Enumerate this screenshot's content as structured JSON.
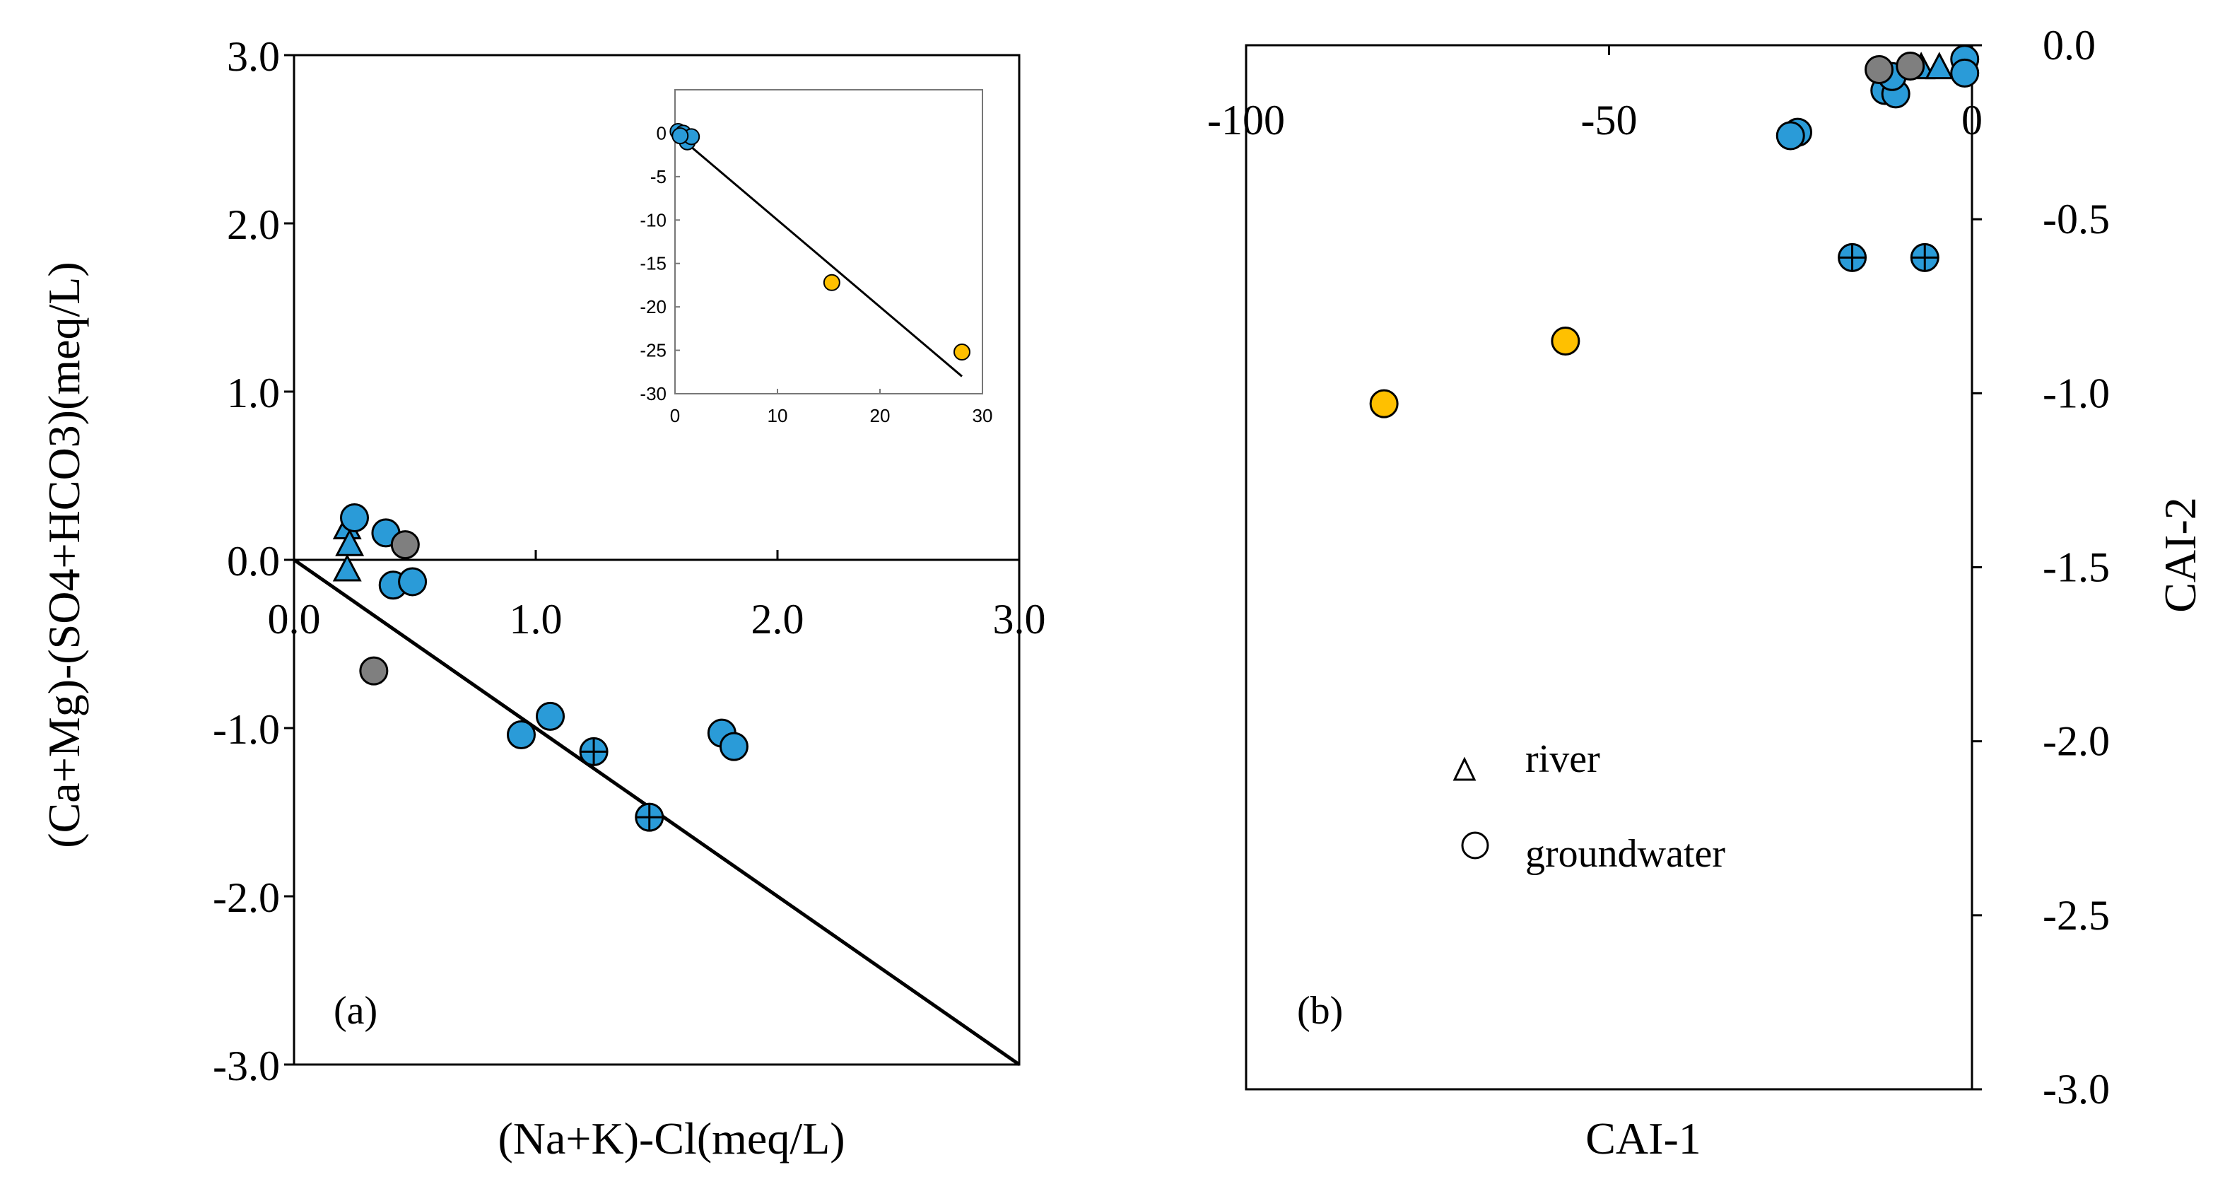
{
  "colors": {
    "blue": "#2a9bd8",
    "gray": "#7f7f7f",
    "orange": "#ffc000",
    "line": "#000000"
  },
  "chart_data": [
    {
      "id": "a",
      "type": "scatter",
      "panel_label": "(a)",
      "xlabel": "(Na+K)-Cl(meq/L)",
      "ylabel": "(Ca+Mg)-(SO4+HCO3)(meq/L)",
      "xlim": [
        0,
        3
      ],
      "ylim": [
        -3,
        3
      ],
      "xticks": [
        "0.0",
        "1.0",
        "2.0",
        "3.0"
      ],
      "yticks": [
        "3.0",
        "2.0",
        "1.0",
        "0.0",
        "-1.0",
        "-2.0",
        "-3.0"
      ],
      "reference_line": {
        "x": [
          0,
          3
        ],
        "y": [
          0,
          -3
        ]
      },
      "series": [
        {
          "name": "river",
          "marker": "triangle",
          "color": "blue",
          "points": [
            [
              0.22,
              0.2
            ],
            [
              0.23,
              0.1
            ],
            [
              0.22,
              -0.05
            ]
          ]
        },
        {
          "name": "groundwater",
          "marker": "circle",
          "color": "blue",
          "points": [
            [
              0.25,
              0.25
            ],
            [
              0.38,
              0.16
            ],
            [
              0.41,
              -0.15
            ],
            [
              0.49,
              -0.13
            ],
            [
              0.94,
              -1.04
            ],
            [
              1.06,
              -0.93
            ],
            [
              1.77,
              -1.03
            ],
            [
              1.82,
              -1.11
            ]
          ]
        },
        {
          "name": "groundwater-cross",
          "marker": "circle-cross",
          "color": "blue",
          "points": [
            [
              1.24,
              -1.14
            ],
            [
              1.47,
              -1.53
            ]
          ]
        },
        {
          "name": "groundwater-gray",
          "marker": "circle",
          "color": "gray",
          "points": [
            [
              0.46,
              0.09
            ],
            [
              0.33,
              -0.66
            ]
          ]
        }
      ]
    },
    {
      "id": "a-inset",
      "type": "scatter",
      "xlim": [
        0,
        30
      ],
      "ylim": [
        -30,
        5
      ],
      "xticks": [
        "0",
        "10",
        "20",
        "30"
      ],
      "yticks": [
        "0",
        "-5",
        "-10",
        "-15",
        "-20",
        "-25",
        "-30"
      ],
      "reference_line": {
        "x": [
          0,
          28
        ],
        "y": [
          0,
          -28
        ]
      },
      "series": [
        {
          "name": "groundwater",
          "marker": "circle",
          "color": "blue",
          "points": [
            [
              0.3,
              0.2
            ],
            [
              0.8,
              0.0
            ],
            [
              1.2,
              -1.0
            ],
            [
              1.6,
              -0.4
            ],
            [
              0.5,
              -0.3
            ]
          ]
        },
        {
          "name": "groundwater-orange",
          "marker": "circle",
          "color": "orange",
          "points": [
            [
              15.3,
              -17.2
            ],
            [
              28.0,
              -25.2
            ]
          ]
        }
      ]
    },
    {
      "id": "b",
      "type": "scatter",
      "panel_label": "(b)",
      "xlabel": "CAI-1",
      "ylabel": "CAI-2",
      "xlim": [
        -100,
        0
      ],
      "ylim": [
        -3,
        0
      ],
      "xticks": [
        "-100",
        "-50",
        "0"
      ],
      "yticks": [
        "0.0",
        "-0.5",
        "-1.0",
        "-1.5",
        "-2.0",
        "-2.5",
        "-3.0"
      ],
      "legend": {
        "position": "center-left",
        "items": [
          "river",
          "groundwater"
        ]
      },
      "series": [
        {
          "name": "river",
          "marker": "triangle",
          "color": "blue",
          "points": [
            [
              -7,
              -0.06
            ],
            [
              -4.5,
              -0.06
            ]
          ]
        },
        {
          "name": "groundwater",
          "marker": "circle",
          "color": "blue",
          "points": [
            [
              -1,
              -0.04
            ],
            [
              -1,
              -0.08
            ],
            [
              -12,
              -0.13
            ],
            [
              -10.5,
              -0.14
            ],
            [
              -11,
              -0.09
            ],
            [
              -24,
              -0.25
            ],
            [
              -25,
              -0.26
            ]
          ]
        },
        {
          "name": "groundwater-cross",
          "marker": "circle-cross",
          "color": "blue",
          "points": [
            [
              -16.5,
              -0.61
            ],
            [
              -6.5,
              -0.61
            ]
          ]
        },
        {
          "name": "groundwater-gray",
          "marker": "circle",
          "color": "gray",
          "points": [
            [
              -12.8,
              -0.07
            ],
            [
              -8.5,
              -0.06
            ]
          ]
        },
        {
          "name": "groundwater-orange",
          "marker": "circle",
          "color": "orange",
          "points": [
            [
              -56,
              -0.85
            ],
            [
              -81,
              -1.03
            ]
          ]
        }
      ]
    }
  ]
}
